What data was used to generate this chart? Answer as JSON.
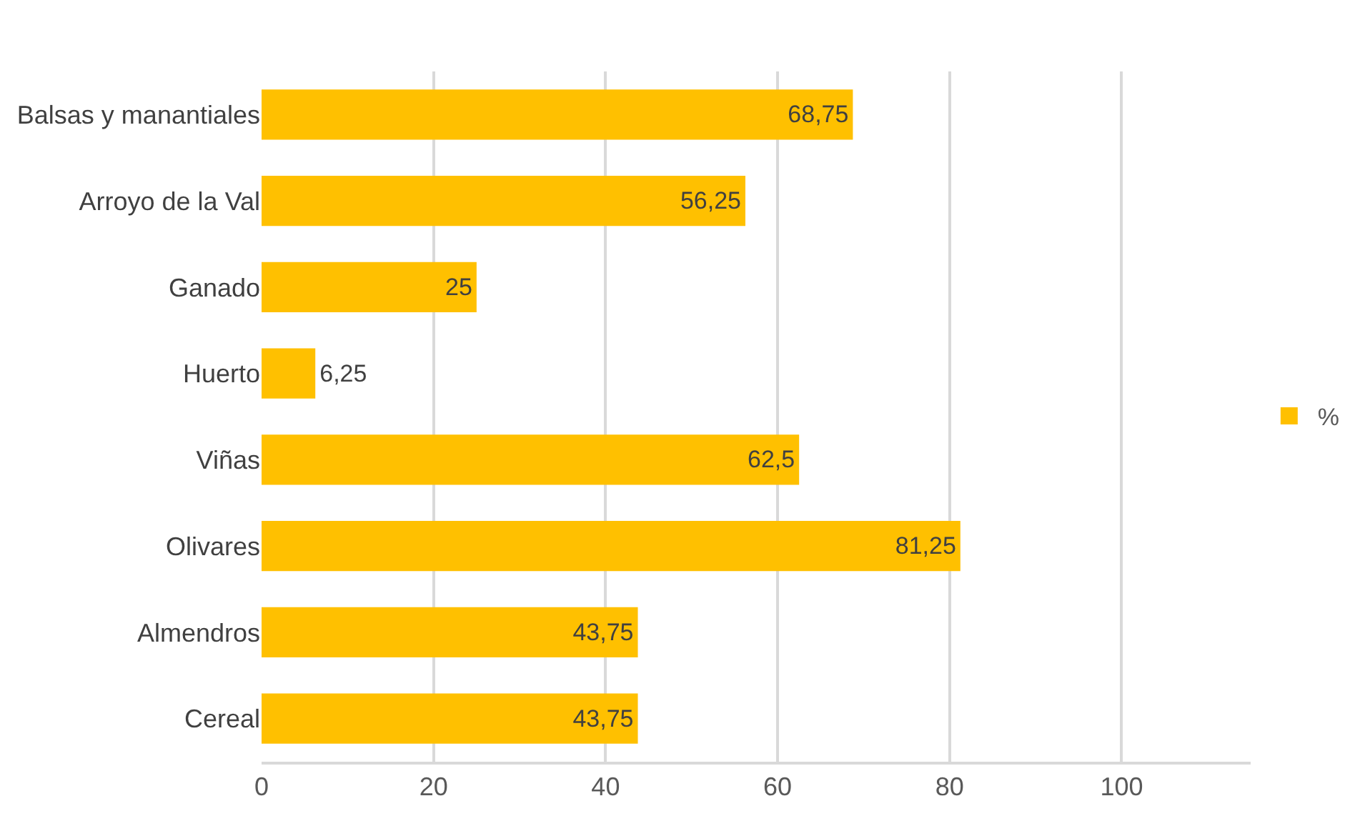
{
  "chart_data": {
    "type": "bar",
    "orientation": "horizontal",
    "categories": [
      "Balsas y manantiales",
      "Arroyo de la Val",
      "Ganado",
      "Huerto",
      "Viñas",
      "Olivares",
      "Almendros",
      "Cereal"
    ],
    "series": [
      {
        "name": "%",
        "color": "#ffc000",
        "values": [
          68.75,
          56.25,
          25,
          6.25,
          62.5,
          81.25,
          43.75,
          43.75
        ],
        "value_labels": [
          "68,75",
          "56,25",
          "25",
          "6,25",
          "62,5",
          "81,25",
          "43,75",
          "43,75"
        ]
      }
    ],
    "xlim": [
      0,
      115
    ],
    "xticks": [
      0,
      20,
      40,
      60,
      80,
      100
    ],
    "grid": "x",
    "legend": "right"
  }
}
